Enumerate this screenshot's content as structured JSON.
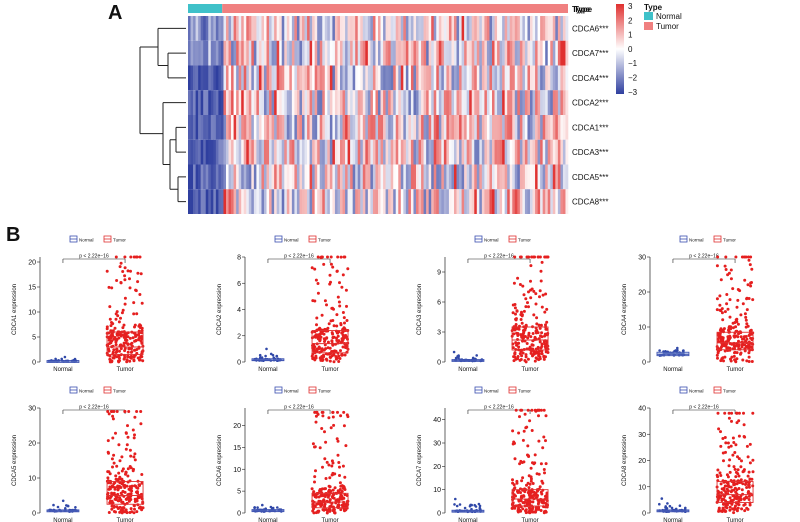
{
  "panels": {
    "a": "A",
    "b": "B"
  },
  "heatmap": {
    "type_title": "Type",
    "annotation_label": "Type",
    "legend": [
      {
        "name": "Normal",
        "color": "#3fc1c9"
      },
      {
        "name": "Tumor",
        "color": "#f08080"
      }
    ],
    "rows": [
      "CDCA6***",
      "CDCA7***",
      "CDCA4***",
      "CDCA2***",
      "CDCA1***",
      "CDCA3***",
      "CDCA5***",
      "CDCA8***"
    ],
    "color_scale": {
      "min": -3,
      "max": 3,
      "ticks": [
        "3",
        "2",
        "1",
        "0",
        "−1",
        "−2",
        "−3"
      ],
      "low": "#2f3f9f",
      "mid": "#ffffff",
      "high": "#e0302f"
    },
    "normal_fraction": 0.09
  },
  "chart_data": {
    "type": "boxplot",
    "categories": [
      "Normal",
      "Tumor"
    ],
    "legend": [
      {
        "name": "Normal",
        "color": "#3a4fb0"
      },
      {
        "name": "Tumor",
        "color": "#e03030"
      }
    ],
    "pvalue": "p < 2.22e−16",
    "panels": [
      {
        "gene": "CDCA1",
        "ylabel": "CDCA1 expression",
        "ylim": [
          0,
          21
        ],
        "yticks": [
          0,
          5,
          10,
          15,
          20
        ],
        "normal": {
          "q1": 0.1,
          "median": 0.2,
          "q3": 0.3,
          "max_outlier": 1.0
        },
        "tumor": {
          "q1": 1.5,
          "median": 3.0,
          "q3": 6.0,
          "max": 21
        }
      },
      {
        "gene": "CDCA2",
        "ylabel": "CDCA2 expression",
        "ylim": [
          0,
          8
        ],
        "yticks": [
          0,
          2,
          4,
          6,
          8
        ],
        "normal": {
          "q1": 0.1,
          "median": 0.15,
          "q3": 0.25,
          "max_outlier": 1.0
        },
        "tumor": {
          "q1": 0.7,
          "median": 1.4,
          "q3": 2.4,
          "max": 8
        }
      },
      {
        "gene": "CDCA3",
        "ylabel": "CDCA3 expression",
        "ylim": [
          0,
          10.5
        ],
        "yticks": [
          0,
          3,
          6,
          9
        ],
        "normal": {
          "q1": 0.1,
          "median": 0.15,
          "q3": 0.25,
          "max_outlier": 1.0
        },
        "tumor": {
          "q1": 1.2,
          "median": 2.2,
          "q3": 3.5,
          "max": 10.5
        }
      },
      {
        "gene": "CDCA4",
        "ylabel": "CDCA4 expression",
        "ylim": [
          0,
          30
        ],
        "yticks": [
          0,
          10,
          20,
          30
        ],
        "normal": {
          "q1": 1.8,
          "median": 2.2,
          "q3": 2.8,
          "max_outlier": 4.0
        },
        "tumor": {
          "q1": 3.5,
          "median": 5.5,
          "q3": 8.5,
          "max": 30
        }
      },
      {
        "gene": "CDCA5",
        "ylabel": "CDCA5 expression",
        "ylim": [
          0,
          30
        ],
        "yticks": [
          0,
          10,
          20,
          30
        ],
        "normal": {
          "q1": 0.4,
          "median": 0.6,
          "q3": 0.9,
          "max_outlier": 3.5
        },
        "tumor": {
          "q1": 2.5,
          "median": 5.0,
          "q3": 9.0,
          "max": 29
        }
      },
      {
        "gene": "CDCA6",
        "ylabel": "CDCA6 expression",
        "ylim": [
          0,
          24
        ],
        "yticks": [
          0,
          5,
          10,
          15,
          20
        ],
        "normal": {
          "q1": 0.3,
          "median": 0.5,
          "q3": 0.8,
          "max_outlier": 1.8
        },
        "tumor": {
          "q1": 1.2,
          "median": 2.5,
          "q3": 4.5,
          "max": 23
        }
      },
      {
        "gene": "CDCA7",
        "ylabel": "CDCA7 expression",
        "ylim": [
          0,
          45
        ],
        "yticks": [
          0,
          10,
          20,
          30,
          40
        ],
        "normal": {
          "q1": 0.5,
          "median": 0.8,
          "q3": 1.2,
          "max_outlier": 6.0
        },
        "tumor": {
          "q1": 3.0,
          "median": 6.0,
          "q3": 10.0,
          "max": 44
        }
      },
      {
        "gene": "CDCA8",
        "ylabel": "CDCA8 expression",
        "ylim": [
          0,
          40
        ],
        "yticks": [
          0,
          10,
          20,
          30,
          40
        ],
        "normal": {
          "q1": 0.5,
          "median": 0.8,
          "q3": 1.2,
          "max_outlier": 5.5
        },
        "tumor": {
          "q1": 4.0,
          "median": 7.0,
          "q3": 12.0,
          "max": 38
        }
      }
    ]
  }
}
